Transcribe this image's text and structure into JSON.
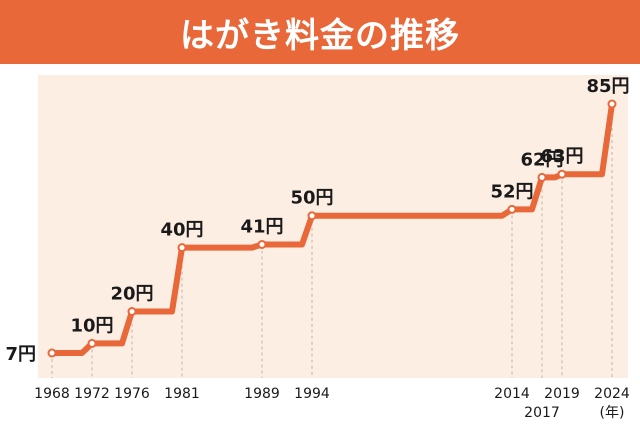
{
  "title": "はがき料金の推移",
  "colors": {
    "accent": "#e8683a",
    "plot_bg": "#fdeee3",
    "marker_fill": "#ffffff",
    "guide": "#c9b3a6"
  },
  "chart_data": {
    "type": "line",
    "line_style": "step",
    "title": "はがき料金の推移",
    "x_unit_label": "(年)",
    "xlim": [
      1966,
      2027
    ],
    "ylim": [
      0,
      92
    ],
    "grid": false,
    "points": [
      {
        "year": 1968,
        "value": 7,
        "label": "7円",
        "tick": "1968"
      },
      {
        "year": 1972,
        "value": 10,
        "label": "10円",
        "tick": "1972"
      },
      {
        "year": 1976,
        "value": 20,
        "label": "20円",
        "tick": "1976"
      },
      {
        "year": 1981,
        "value": 40,
        "label": "40円",
        "tick": "1981"
      },
      {
        "year": 1989,
        "value": 41,
        "label": "41円",
        "tick": "1989"
      },
      {
        "year": 1994,
        "value": 50,
        "label": "50円",
        "tick": "1994"
      },
      {
        "year": 2014,
        "value": 52,
        "label": "52円",
        "tick": "2014"
      },
      {
        "year": 2017,
        "value": 62,
        "label": "62円",
        "tick": "2017"
      },
      {
        "year": 2019,
        "value": 63,
        "label": "63円",
        "tick": "2019"
      },
      {
        "year": 2024,
        "value": 85,
        "label": "85円",
        "tick": "2024"
      }
    ]
  }
}
